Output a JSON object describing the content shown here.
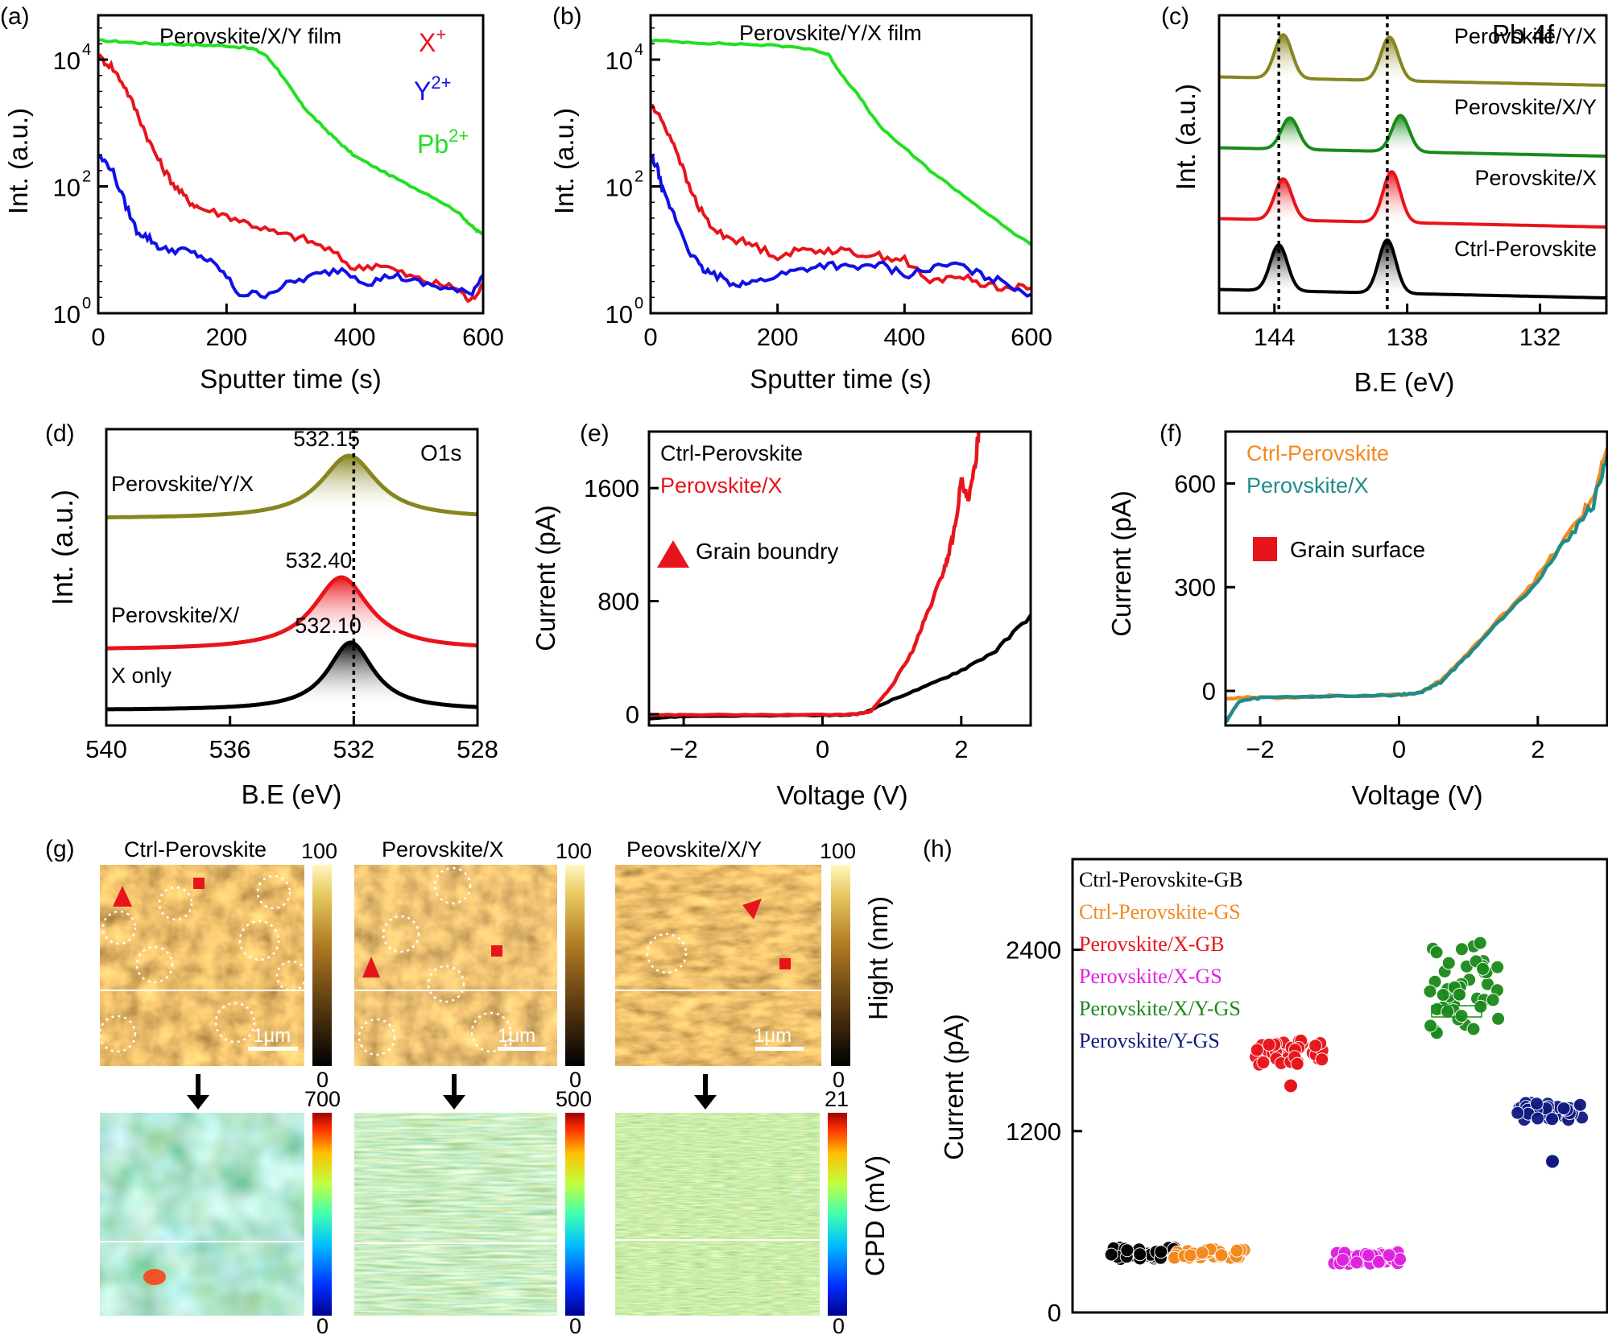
{
  "chart_data": [
    {
      "id": "a",
      "panel_label": "(a)",
      "type": "line",
      "y_scale": "log",
      "title": "Perovskite/X/Y film",
      "xlabel": "Sputter time (s)",
      "ylabel": "Int. (a.u.)",
      "xlim": [
        0,
        600
      ],
      "ylim": [
        1,
        50000
      ],
      "x_ticks": [
        0,
        200,
        400,
        600
      ],
      "x_tick_labels": [
        "0",
        "200",
        "400",
        "600"
      ],
      "y_ticks": [
        1,
        100,
        10000
      ],
      "y_tick_labels": [
        "10",
        "10",
        "10"
      ],
      "y_tick_exponents": [
        "0",
        "2",
        "4"
      ],
      "legend": [
        {
          "text": "X",
          "sup": "+",
          "color": "#e8141b"
        },
        {
          "text": "Y",
          "sup": "2+",
          "color": "#1010e6"
        },
        {
          "text": "Pb",
          "sup": "2+",
          "color": "#22e022"
        }
      ],
      "series": [
        {
          "color": "#22e022",
          "x": [
            0,
            40,
            80,
            120,
            160,
            200,
            240,
            260,
            280,
            300,
            320,
            340,
            360,
            380,
            400,
            440,
            480,
            520,
            560,
            580,
            590,
            600
          ],
          "y": [
            20000,
            19000,
            18000,
            17500,
            17000,
            16500,
            15000,
            12000,
            7000,
            3500,
            1800,
            1100,
            700,
            450,
            300,
            180,
            110,
            70,
            40,
            25,
            20,
            18
          ]
        },
        {
          "color": "#e8141b",
          "x": [
            0,
            20,
            40,
            60,
            80,
            100,
            120,
            140,
            160,
            200,
            240,
            280,
            320,
            360,
            400,
            440,
            480,
            520,
            560,
            580,
            600
          ],
          "y": [
            11000,
            8000,
            4000,
            1500,
            500,
            200,
            100,
            60,
            45,
            35,
            25,
            18,
            15,
            10,
            5,
            6,
            4,
            3,
            2.5,
            1.5,
            3
          ]
        },
        {
          "color": "#1010e6",
          "x": [
            0,
            20,
            40,
            60,
            80,
            100,
            130,
            160,
            190,
            220,
            260,
            300,
            340,
            380,
            420,
            460,
            500,
            540,
            580,
            600
          ],
          "y": [
            300,
            200,
            60,
            20,
            15,
            10,
            10,
            8,
            5,
            2,
            2,
            3,
            4,
            5,
            3,
            4,
            3,
            2.5,
            2,
            4
          ]
        }
      ]
    },
    {
      "id": "b",
      "panel_label": "(b)",
      "type": "line",
      "y_scale": "log",
      "title": "Perovskite/Y/X film",
      "xlabel": "Sputter time (s)",
      "ylabel": "Int. (a.u.)",
      "xlim": [
        0,
        600
      ],
      "ylim": [
        1,
        50000
      ],
      "x_ticks": [
        0,
        200,
        400,
        600
      ],
      "x_tick_labels": [
        "0",
        "200",
        "400",
        "600"
      ],
      "y_ticks": [
        1,
        100,
        10000
      ],
      "y_tick_labels": [
        "10",
        "10",
        "10"
      ],
      "y_tick_exponents": [
        "0",
        "2",
        "4"
      ],
      "series": [
        {
          "color": "#22e022",
          "x": [
            0,
            50,
            100,
            150,
            200,
            250,
            280,
            300,
            330,
            360,
            400,
            440,
            480,
            520,
            560,
            600
          ],
          "y": [
            20000,
            19000,
            18000,
            17500,
            16500,
            15000,
            12000,
            6000,
            2500,
            900,
            400,
            180,
            90,
            45,
            22,
            12
          ]
        },
        {
          "color": "#e8141b",
          "x": [
            0,
            20,
            40,
            60,
            80,
            100,
            130,
            160,
            200,
            240,
            280,
            320,
            360,
            400,
            440,
            480,
            520,
            560,
            600
          ],
          "y": [
            2000,
            1000,
            400,
            100,
            40,
            20,
            15,
            12,
            8,
            10,
            10,
            9,
            8,
            7,
            3,
            4,
            3,
            2.5,
            2.5
          ]
        },
        {
          "color": "#1010e6",
          "x": [
            0,
            10,
            20,
            40,
            60,
            80,
            100,
            130,
            160,
            200,
            240,
            280,
            320,
            360,
            400,
            440,
            480,
            520,
            560,
            600
          ],
          "y": [
            300,
            200,
            80,
            30,
            10,
            5,
            4,
            3,
            3,
            4,
            5,
            6,
            5,
            6,
            4,
            5,
            6,
            4,
            3,
            2
          ]
        }
      ]
    },
    {
      "id": "c",
      "panel_label": "(c)",
      "type": "line",
      "title": "Pb 4f",
      "xlabel": "B.E (eV)",
      "ylabel": "Int. (a.u.)",
      "xlim": [
        146.5,
        129
      ],
      "x_ticks": [
        144,
        138,
        132
      ],
      "x_tick_labels": [
        "144",
        "138",
        "132"
      ],
      "dashed_lines": [
        143.8,
        138.9
      ],
      "series": [
        {
          "name": "Perovskite/Y/X",
          "color": "#86851f",
          "offset": 3,
          "peaks": [
            {
              "center": 143.6,
              "height": 0.9,
              "width": 0.55
            },
            {
              "center": 138.8,
              "height": 0.9,
              "width": 0.55
            }
          ]
        },
        {
          "name": "Perovskite/X/Y",
          "color": "#1a8a1a",
          "offset": 2,
          "peaks": [
            {
              "center": 143.3,
              "height": 0.65,
              "width": 0.55
            },
            {
              "center": 138.3,
              "height": 0.75,
              "width": 0.55
            }
          ]
        },
        {
          "name": "Perovskite/X",
          "color": "#e8141b",
          "offset": 1,
          "peaks": [
            {
              "center": 143.6,
              "height": 0.85,
              "width": 0.55
            },
            {
              "center": 138.7,
              "height": 1.05,
              "width": 0.55
            }
          ]
        },
        {
          "name": "Ctrl-Perovskite",
          "color": "#000000",
          "offset": 0,
          "peaks": [
            {
              "center": 143.8,
              "height": 0.95,
              "width": 0.55
            },
            {
              "center": 138.9,
              "height": 1.1,
              "width": 0.55
            }
          ]
        }
      ]
    },
    {
      "id": "d",
      "panel_label": "(d)",
      "type": "line",
      "title": "O1s",
      "xlabel": "B.E (eV)",
      "ylabel": "Int. (a.u.)",
      "xlim": [
        540,
        528
      ],
      "x_ticks": [
        540,
        536,
        532,
        528
      ],
      "x_tick_labels": [
        "540",
        "536",
        "532",
        "528"
      ],
      "dashed_lines": [
        532
      ],
      "series": [
        {
          "name": "Perovskite/Y/X",
          "peak_label": "532.15",
          "color": "#86851f",
          "offset": 2,
          "center": 532.15,
          "height": 0.65,
          "width": 1.1
        },
        {
          "name": "Perovskite/X/",
          "peak_label": "532.40",
          "color": "#e8141b",
          "offset": 1,
          "center": 532.4,
          "height": 0.75,
          "width": 1.1
        },
        {
          "name": "X only",
          "peak_label": "532.10",
          "color": "#000000",
          "offset": 0,
          "center": 532.1,
          "height": 0.7,
          "width": 0.9
        }
      ]
    },
    {
      "id": "e",
      "panel_label": "(e)",
      "type": "line",
      "xlabel": "Voltage (V)",
      "ylabel": "Current (pA)",
      "xlim": [
        -2.5,
        3
      ],
      "ylim": [
        -80,
        2000
      ],
      "x_ticks": [
        -2,
        0,
        2
      ],
      "x_tick_labels": [
        "−2",
        "0",
        "2"
      ],
      "y_ticks": [
        0,
        800,
        1600
      ],
      "y_tick_labels": [
        "0",
        "800",
        "1600"
      ],
      "marker_label": "Grain boundry",
      "series": [
        {
          "name": "Ctrl-Perovskite",
          "color": "#000000",
          "x": [
            -2.5,
            -2,
            -1,
            0,
            0.4,
            0.6,
            1,
            1.5,
            2,
            2.5,
            3
          ],
          "y": [
            -30,
            -15,
            -10,
            -8,
            -5,
            10,
            100,
            200,
            310,
            450,
            700
          ]
        },
        {
          "name": "Perovskite/X",
          "color": "#e8141b",
          "x": [
            -2.5,
            -2,
            -1,
            0,
            0.5,
            0.7,
            1,
            1.3,
            1.5,
            1.7,
            1.8,
            1.9,
            2,
            2.1,
            2.2,
            2.25
          ],
          "y": [
            -5,
            -5,
            -5,
            -5,
            0,
            20,
            200,
            450,
            700,
            950,
            1100,
            1300,
            1650,
            1500,
            1750,
            2000
          ]
        }
      ]
    },
    {
      "id": "f",
      "panel_label": "(f)",
      "type": "line",
      "xlabel": "Voltage (V)",
      "ylabel": "Current (pA)",
      "xlim": [
        -2.5,
        3
      ],
      "ylim": [
        -100,
        750
      ],
      "x_ticks": [
        -2,
        0,
        2
      ],
      "x_tick_labels": [
        "−2",
        "0",
        "2"
      ],
      "y_ticks": [
        0,
        300,
        600
      ],
      "y_tick_labels": [
        "0",
        "300",
        "600"
      ],
      "marker_label": "Grain surface",
      "series": [
        {
          "name": "Ctrl-Perovskite",
          "color": "#f28a1e",
          "x": [
            -2.5,
            -2,
            -1,
            0,
            0.3,
            0.6,
            1,
            1.5,
            2,
            2.5,
            2.8,
            3
          ],
          "y": [
            -20,
            -20,
            -15,
            -12,
            -5,
            30,
            110,
            220,
            330,
            470,
            560,
            700
          ]
        },
        {
          "name": "Perovskite/X",
          "color": "#1f8c8c",
          "x": [
            -2.5,
            -2.3,
            -2,
            -1,
            0,
            0.3,
            0.6,
            1,
            1.5,
            2,
            2.5,
            2.8,
            3
          ],
          "y": [
            -90,
            -30,
            -20,
            -15,
            -12,
            -5,
            25,
            105,
            215,
            320,
            460,
            540,
            680
          ]
        }
      ]
    },
    {
      "id": "h",
      "panel_label": "(h)",
      "type": "scatter",
      "ylabel": "Current (pA)",
      "ylim": [
        0,
        3000
      ],
      "y_ticks": [
        0,
        1200,
        2400
      ],
      "y_tick_labels": [
        "0",
        "1200",
        "2400"
      ],
      "series": [
        {
          "name": "Ctrl-Perovskite-GB",
          "color": "#000000",
          "mean": 390,
          "spread": 40
        },
        {
          "name": "Ctrl-Perovskite-GS",
          "color": "#f28a1e",
          "mean": 390,
          "spread": 30
        },
        {
          "name": "Perovskite/X-GB",
          "color": "#e8141b",
          "mean": 1720,
          "spread": 80,
          "outlier": 1500
        },
        {
          "name": "Perovskite/X-GS",
          "color": "#e020e0",
          "mean": 360,
          "spread": 40
        },
        {
          "name": "Perovskite/X/Y-GS",
          "color": "#1a8a1a",
          "mean": 2150,
          "spread": 300
        },
        {
          "name": "Perovskite/Y-GS",
          "color": "#101a80",
          "mean": 1330,
          "spread": 60,
          "outlier": 1000
        }
      ]
    }
  ],
  "afm": {
    "panel_label": "(g)",
    "height_titles": [
      "Ctrl-Perovskite",
      "Perovskite/X",
      "Peovskite/X/Y"
    ],
    "height_max_labels": [
      "100",
      "100",
      "100"
    ],
    "height_min_labels": [
      "0",
      "0",
      "0"
    ],
    "height_axis_label": "Hight (nm)",
    "scale_bar_label": "1μm",
    "cpd_max_labels": [
      "700",
      "500",
      "21"
    ],
    "cpd_min_labels": [
      "0",
      "0",
      "0"
    ],
    "cpd_axis_label": "CPD (mV)"
  }
}
